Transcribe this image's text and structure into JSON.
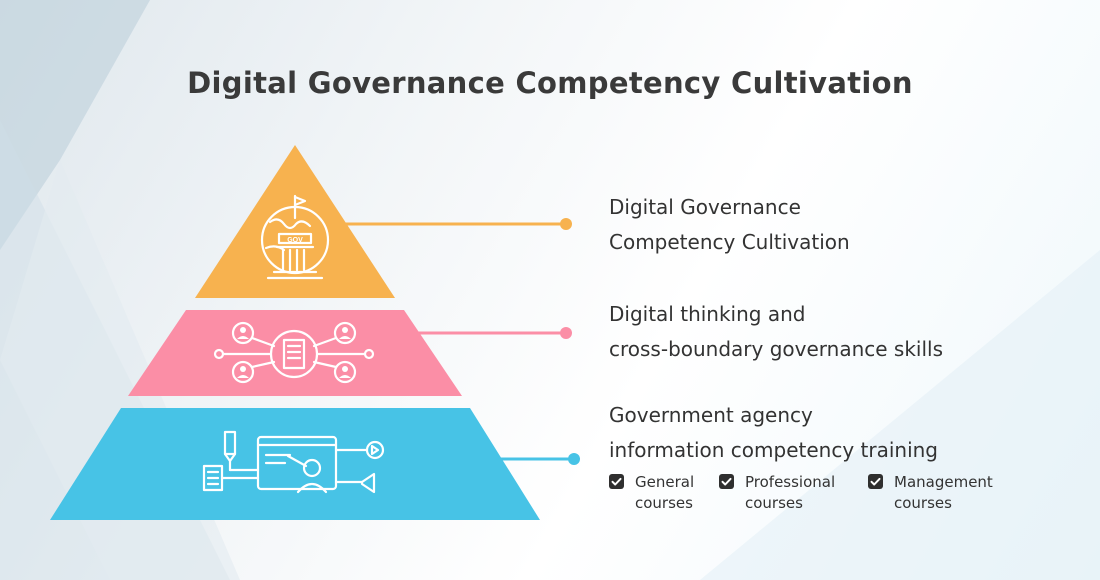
{
  "title": "Digital Governance Competency Cultivation",
  "colors": {
    "top": "#f7b24f",
    "middle": "#fb8ea6",
    "bottom": "#47c3e6"
  },
  "tiers": [
    {
      "lines": [
        "Digital Governance",
        "Competency Cultivation"
      ],
      "icon": "government-building-icon"
    },
    {
      "lines": [
        "Digital thinking and",
        "cross-boundary governance skills"
      ],
      "icon": "network-people-icon"
    },
    {
      "lines": [
        "Government agency",
        "information competency training"
      ],
      "icon": "training-screen-icon"
    }
  ],
  "courses": [
    {
      "lines": [
        "General",
        "courses"
      ]
    },
    {
      "lines": [
        "Professional",
        "courses"
      ]
    },
    {
      "lines": [
        "Management",
        "courses"
      ]
    }
  ]
}
